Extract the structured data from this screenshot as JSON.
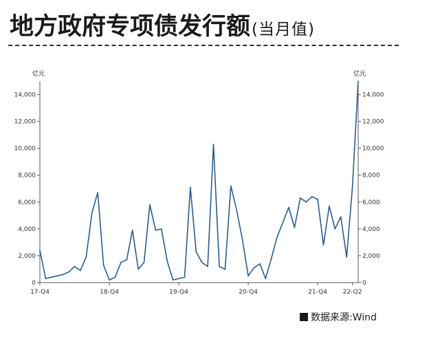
{
  "title": {
    "main": "地方政府专项债发行额",
    "sub": "(当月值)"
  },
  "source": {
    "text": "数据来源:Wind"
  },
  "colors": {
    "line": "#2b5a8a",
    "axis": "#555555",
    "title": "#1a1a1a"
  },
  "chart_data": {
    "type": "line",
    "title": "地方政府专项债发行额",
    "subtitle": "(当月值)",
    "unit_left": "亿元",
    "unit_right": "亿元",
    "ylim": [
      0,
      15000
    ],
    "y_ticks": [
      0,
      2000,
      4000,
      6000,
      8000,
      10000,
      12000,
      14000
    ],
    "y_tick_labels": [
      "0",
      "2,000",
      "4,000",
      "6,000",
      "8,000",
      "10,000",
      "12,000",
      "14,000"
    ],
    "grid": false,
    "x_tick_labels": [
      {
        "label": "17-Q4",
        "index": 0
      },
      {
        "label": "18-Q4",
        "index": 12
      },
      {
        "label": "19-Q4",
        "index": 24
      },
      {
        "label": "20-Q4",
        "index": 36
      },
      {
        "label": "21-Q4",
        "index": 48
      },
      {
        "label": "22-Q2",
        "index": 54
      }
    ],
    "series": [
      {
        "values": [
          2400,
          300,
          400,
          500,
          600,
          800,
          1200,
          900,
          1900,
          5200,
          6700,
          1300,
          200,
          400,
          1500,
          1700,
          3900,
          1000,
          1500,
          5800,
          3900,
          4000,
          1600,
          200,
          300,
          400,
          7100,
          2300,
          1500,
          1200,
          10300,
          1200,
          1000,
          7200,
          5400,
          3200,
          500,
          1100,
          1400,
          300,
          1800,
          3400,
          4500,
          5600,
          4100,
          6300,
          6000,
          6400,
          6200,
          2800,
          5700,
          4000,
          4900,
          1900,
          7100,
          15000
        ]
      }
    ]
  }
}
